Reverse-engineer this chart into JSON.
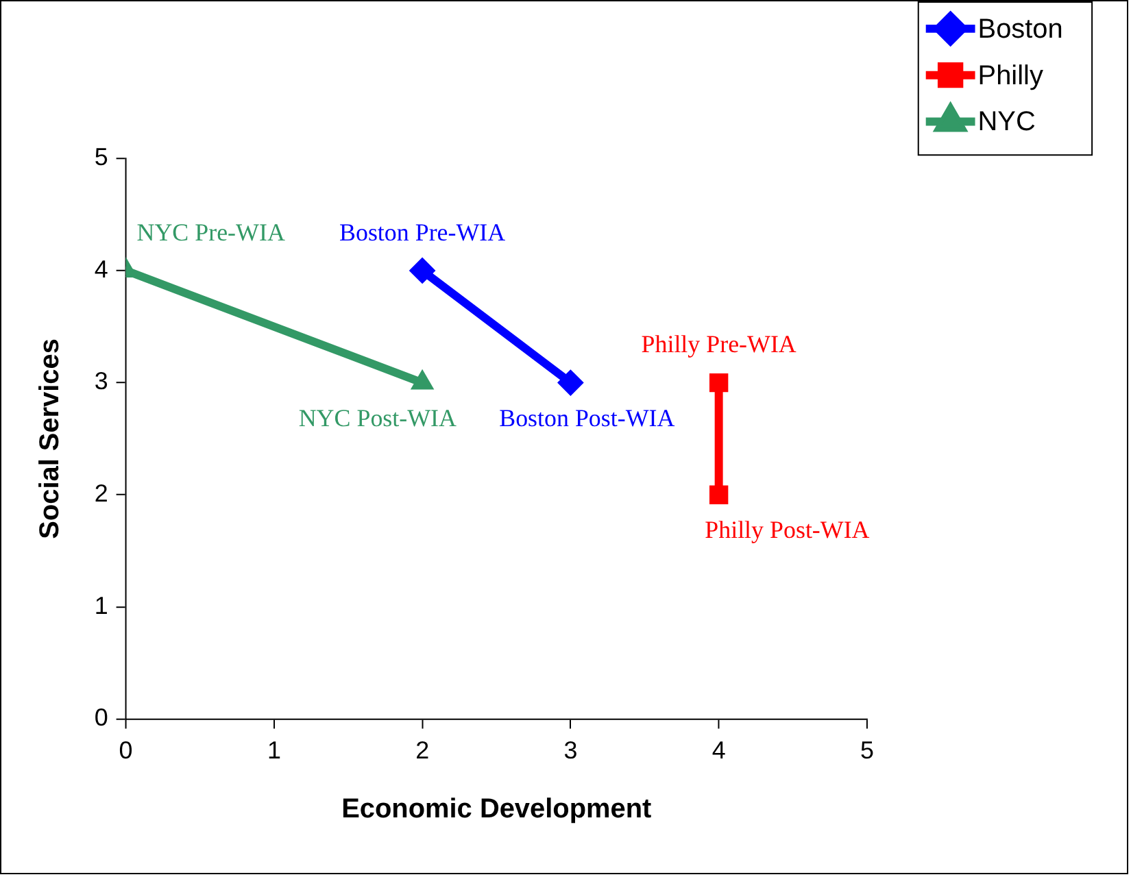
{
  "chart_data": {
    "type": "line",
    "xlabel": "Economic Development",
    "ylabel": "Social Services",
    "xlim": [
      0,
      5
    ],
    "ylim": [
      0,
      5
    ],
    "xticks": [
      0,
      1,
      2,
      3,
      4,
      5
    ],
    "yticks": [
      0,
      1,
      2,
      3,
      4,
      5
    ],
    "grid": false,
    "legend": "top right",
    "series": [
      {
        "name": "Boston",
        "color": "#0000ff",
        "marker": "diamond",
        "x": [
          2,
          3
        ],
        "values": [
          4,
          3
        ]
      },
      {
        "name": "Philly",
        "color": "#ff0000",
        "marker": "square",
        "x": [
          4,
          4
        ],
        "values": [
          3,
          2
        ]
      },
      {
        "name": "NYC",
        "color": "#339966",
        "marker": "triangle",
        "x": [
          0,
          2
        ],
        "values": [
          4,
          3
        ]
      }
    ],
    "annotations": [
      {
        "text": "Boston Pre-WIA",
        "x": 2,
        "y": 4
      },
      {
        "text": "Boston Post-WIA",
        "x": 3,
        "y": 3
      },
      {
        "text": "Philly Pre-WIA",
        "x": 4,
        "y": 3
      },
      {
        "text": "Philly Post-WIA",
        "x": 4,
        "y": 2
      },
      {
        "text": "NYC Pre-WIA",
        "x": 0,
        "y": 4
      },
      {
        "text": "NYC Post-WIA",
        "x": 2,
        "y": 3
      }
    ]
  }
}
